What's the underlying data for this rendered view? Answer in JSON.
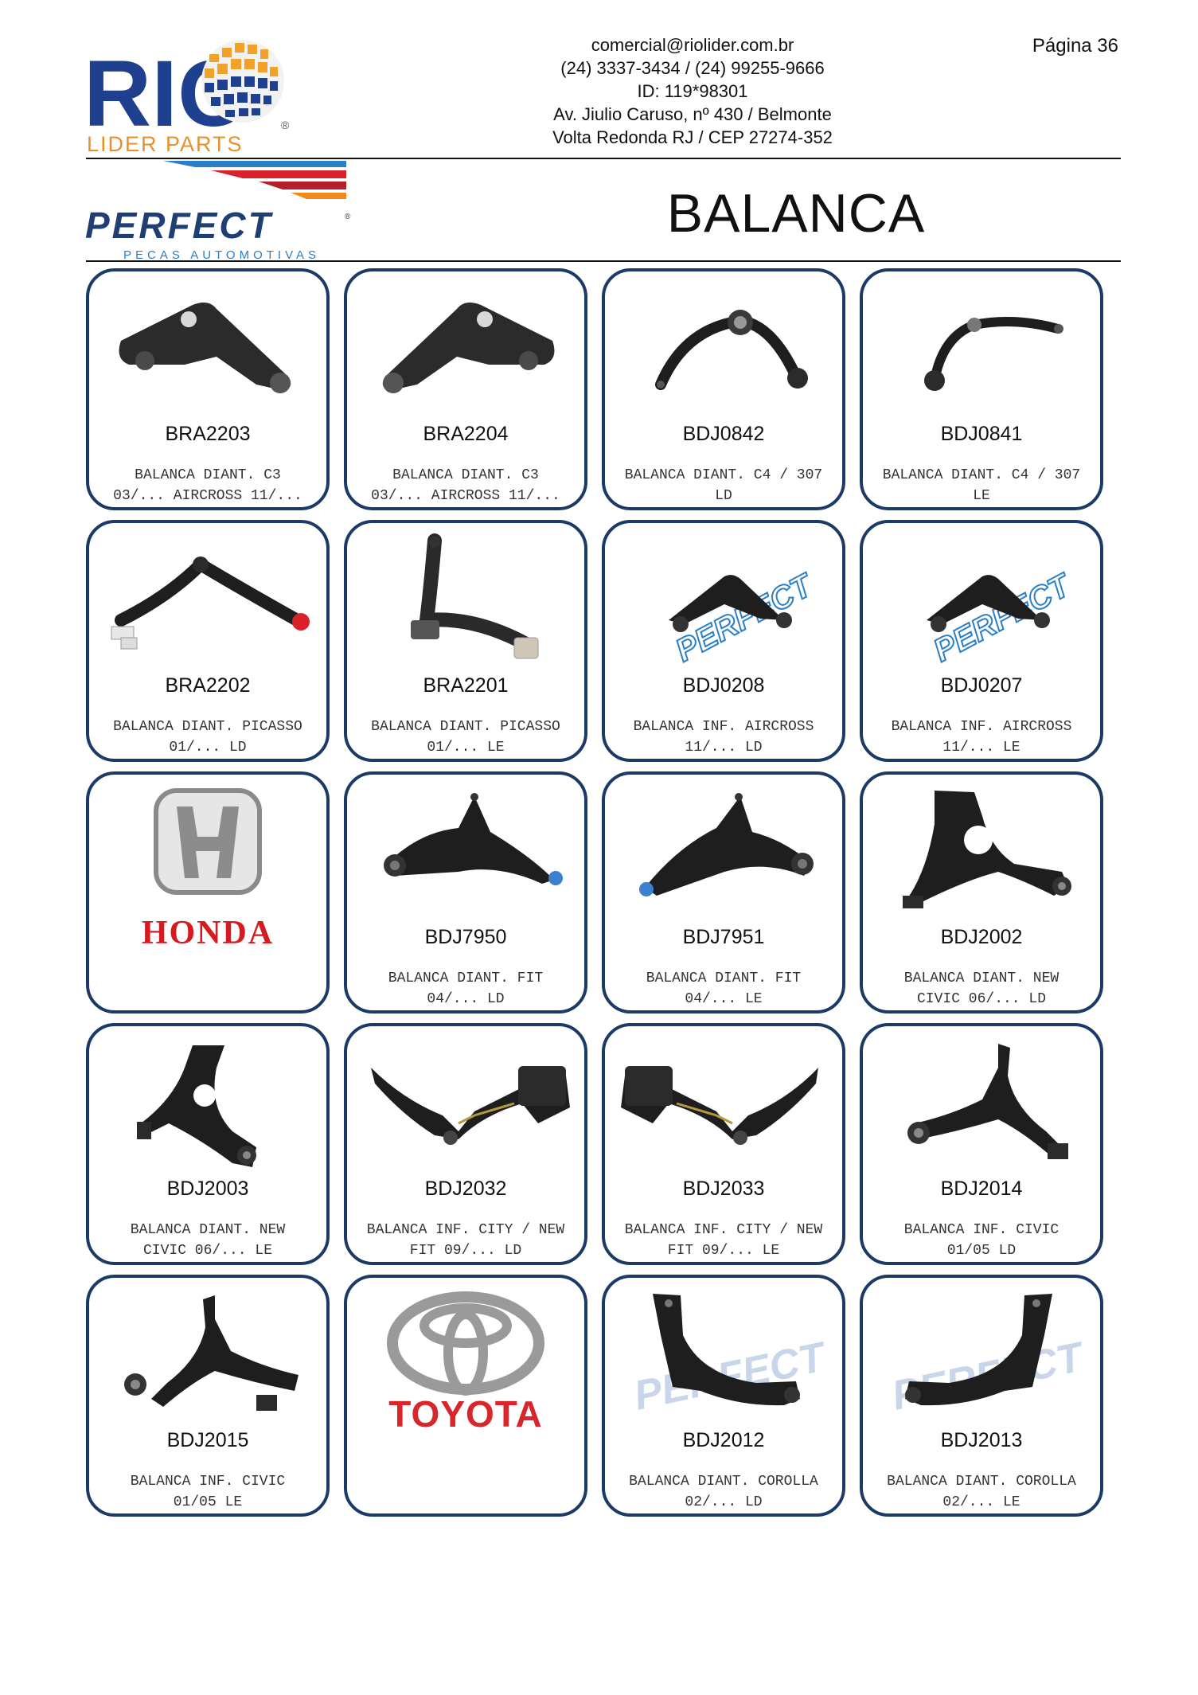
{
  "header": {
    "logo_brand": "RIO",
    "logo_sub": "LIDER PARTS",
    "contact_lines": [
      "comercial@riolider.com.br",
      "(24) 3337-3434 / (24) 99255-9666",
      "ID:  119*98301",
      "Av. Jiulio Caruso, nº 430 / Belmonte",
      "Volta Redonda RJ / CEP 27274-352"
    ],
    "page_label": "Página 36"
  },
  "supplier": {
    "name": "PERFECT",
    "tagline": "PECAS AUTOMOTIVAS"
  },
  "section": {
    "title": "BALANCA"
  },
  "colors": {
    "card_border": "#1c3a66",
    "perfect_blue": "#1f3f73",
    "perfect_red": "#d8222b",
    "honda_red": "#d71920",
    "toyota_red": "#d9262a"
  },
  "cards": [
    {
      "type": "product",
      "code": "BRA2203",
      "desc1": "BALANCA DIANT. C3",
      "desc2": "03/... AIRCROSS 11/...",
      "icon": "control-arm-icon"
    },
    {
      "type": "product",
      "code": "BRA2204",
      "desc1": "BALANCA DIANT. C3",
      "desc2": "03/... AIRCROSS 11/...",
      "icon": "control-arm-icon"
    },
    {
      "type": "product",
      "code": "BDJ0842",
      "desc1": "BALANCA DIANT. C4 / 307",
      "desc2": "LD",
      "icon": "control-arm-icon"
    },
    {
      "type": "product",
      "code": "BDJ0841",
      "desc1": "BALANCA DIANT. C4 / 307",
      "desc2": "LE",
      "icon": "control-arm-icon"
    },
    {
      "type": "product",
      "code": "BRA2202",
      "desc1": "BALANCA DIANT. PICASSO",
      "desc2": "01/... LD",
      "icon": "control-arm-icon"
    },
    {
      "type": "product",
      "code": "BRA2201",
      "desc1": "BALANCA DIANT. PICASSO",
      "desc2": "01/... LE",
      "icon": "control-arm-icon"
    },
    {
      "type": "product",
      "code": "BDJ0208",
      "desc1": "BALANCA INF. AIRCROSS",
      "desc2": "11/... LD",
      "icon": "control-arm-icon"
    },
    {
      "type": "product",
      "code": "BDJ0207",
      "desc1": "BALANCA INF. AIRCROSS",
      "desc2": "11/... LE",
      "icon": "control-arm-icon"
    },
    {
      "type": "brand",
      "brand": "HONDA",
      "icon": "honda-logo-icon"
    },
    {
      "type": "product",
      "code": "BDJ7950",
      "desc1": "BALANCA DIANT. FIT",
      "desc2": "04/... LD",
      "icon": "control-arm-icon"
    },
    {
      "type": "product",
      "code": "BDJ7951",
      "desc1": "BALANCA DIANT. FIT",
      "desc2": "04/... LE",
      "icon": "control-arm-icon"
    },
    {
      "type": "product",
      "code": "BDJ2002",
      "desc1": "BALANCA DIANT. NEW",
      "desc2": "CIVIC 06/... LD",
      "icon": "control-arm-icon"
    },
    {
      "type": "product",
      "code": "BDJ2003",
      "desc1": "BALANCA DIANT. NEW",
      "desc2": "CIVIC 06/... LE",
      "icon": "control-arm-icon"
    },
    {
      "type": "product",
      "code": "BDJ2032",
      "desc1": "BALANCA INF. CITY / NEW",
      "desc2": "FIT 09/... LD",
      "icon": "control-arm-icon"
    },
    {
      "type": "product",
      "code": "BDJ2033",
      "desc1": "BALANCA INF. CITY / NEW",
      "desc2": "FIT 09/... LE",
      "icon": "control-arm-icon"
    },
    {
      "type": "product",
      "code": "BDJ2014",
      "desc1": "BALANCA INF. CIVIC",
      "desc2": "01/05 LD",
      "icon": "control-arm-icon"
    },
    {
      "type": "product",
      "code": "BDJ2015",
      "desc1": "BALANCA INF. CIVIC",
      "desc2": "01/05 LE",
      "icon": "control-arm-icon"
    },
    {
      "type": "brand",
      "brand": "TOYOTA",
      "icon": "toyota-logo-icon"
    },
    {
      "type": "product",
      "code": "BDJ2012",
      "desc1": "BALANCA DIANT. COROLLA",
      "desc2": "02/... LD",
      "icon": "control-arm-icon"
    },
    {
      "type": "product",
      "code": "BDJ2013",
      "desc1": "BALANCA DIANT. COROLLA",
      "desc2": "02/... LE",
      "icon": "control-arm-icon"
    }
  ]
}
